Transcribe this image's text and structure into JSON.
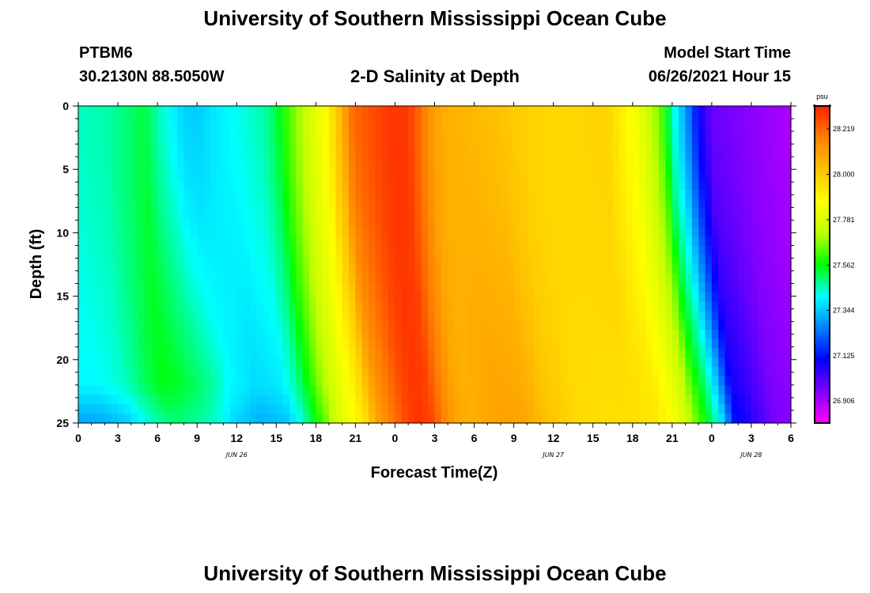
{
  "header": {
    "title_top": "University of Southern Mississippi Ocean Cube",
    "title_bottom": "University of Southern Mississippi Ocean Cube",
    "station": "PTBM6",
    "coords": "30.2130N  88.5050W",
    "subtitle": "2-D Salinity at Depth",
    "model_start_label": "Model Start Time",
    "model_start_value": "06/26/2021 Hour 15"
  },
  "chart_data": {
    "type": "heatmap",
    "title": "2-D Salinity at Depth",
    "xlabel": "Forecast Time(Z)",
    "ylabel": "Depth (ft)",
    "x_start_hour": 0,
    "x_end_hour": 54,
    "x_ticks": [
      {
        "hour": 0,
        "label": "0"
      },
      {
        "hour": 3,
        "label": "3"
      },
      {
        "hour": 6,
        "label": "6"
      },
      {
        "hour": 9,
        "label": "9"
      },
      {
        "hour": 12,
        "label": "12"
      },
      {
        "hour": 15,
        "label": "15"
      },
      {
        "hour": 18,
        "label": "18"
      },
      {
        "hour": 21,
        "label": "21"
      },
      {
        "hour": 24,
        "label": "0"
      },
      {
        "hour": 27,
        "label": "3"
      },
      {
        "hour": 30,
        "label": "6"
      },
      {
        "hour": 33,
        "label": "9"
      },
      {
        "hour": 36,
        "label": "12"
      },
      {
        "hour": 39,
        "label": "15"
      },
      {
        "hour": 42,
        "label": "18"
      },
      {
        "hour": 45,
        "label": "21"
      },
      {
        "hour": 48,
        "label": "0"
      },
      {
        "hour": 51,
        "label": "3"
      },
      {
        "hour": 54,
        "label": "6"
      }
    ],
    "date_labels": [
      {
        "hour": 12,
        "label": "JUN 26"
      },
      {
        "hour": 36,
        "label": "JUN 27"
      },
      {
        "hour": 51,
        "label": "JUN 28"
      }
    ],
    "y_range": [
      0,
      25
    ],
    "y_ticks": [
      0,
      5,
      10,
      15,
      20,
      25
    ],
    "colorbar": {
      "unit": "psu",
      "range": [
        26.8,
        28.33
      ],
      "ticks": [
        "28.219",
        "28.000",
        "27.781",
        "27.562",
        "27.344",
        "27.125",
        "26.906"
      ],
      "colors": [
        "#ff00ff",
        "#8000ff",
        "#0000ff",
        "#0080ff",
        "#00ffff",
        "#00ff00",
        "#c0ff00",
        "#ffff00",
        "#ffc000",
        "#ff8000",
        "#ff2000"
      ]
    },
    "profile_hours": [
      0,
      2,
      4,
      5,
      6,
      8,
      9,
      10,
      12,
      14,
      15,
      16,
      17,
      18,
      19,
      19.5,
      20,
      20.5,
      21,
      22,
      23,
      24,
      25,
      26,
      27,
      28,
      30,
      32,
      33,
      34,
      35,
      36,
      38,
      40,
      41,
      42,
      43,
      43.5,
      44,
      44.5,
      45,
      46,
      47,
      48,
      51,
      54
    ],
    "profile_surface": [
      27.45,
      27.46,
      27.5,
      27.53,
      27.46,
      27.36,
      27.35,
      27.38,
      27.42,
      27.46,
      27.52,
      27.63,
      27.72,
      27.81,
      27.9,
      28.0,
      28.05,
      28.18,
      28.22,
      28.25,
      28.28,
      28.3,
      28.29,
      28.2,
      28.1,
      28.06,
      28.04,
      28.02,
      28.0,
      27.98,
      27.97,
      27.96,
      27.97,
      27.98,
      27.92,
      27.86,
      27.78,
      27.72,
      27.66,
      27.58,
      27.45,
      27.3,
      27.1,
      26.98,
      26.94,
      26.9
    ],
    "profile_near_bottom": [
      27.4,
      27.44,
      27.53,
      27.56,
      27.56,
      27.52,
      27.48,
      27.42,
      27.36,
      27.38,
      27.45,
      27.56,
      27.68,
      27.78,
      27.86,
      27.9,
      27.95,
      28.03,
      28.1,
      28.18,
      28.26,
      28.3,
      28.27,
      28.16,
      28.08,
      28.06,
      28.1,
      28.09,
      28.05,
      28.01,
      27.99,
      27.96,
      27.95,
      27.95,
      27.94,
      27.93,
      27.88,
      27.84,
      27.8,
      27.74,
      27.66,
      27.54,
      27.38,
      27.12,
      26.96,
      26.92
    ]
  }
}
